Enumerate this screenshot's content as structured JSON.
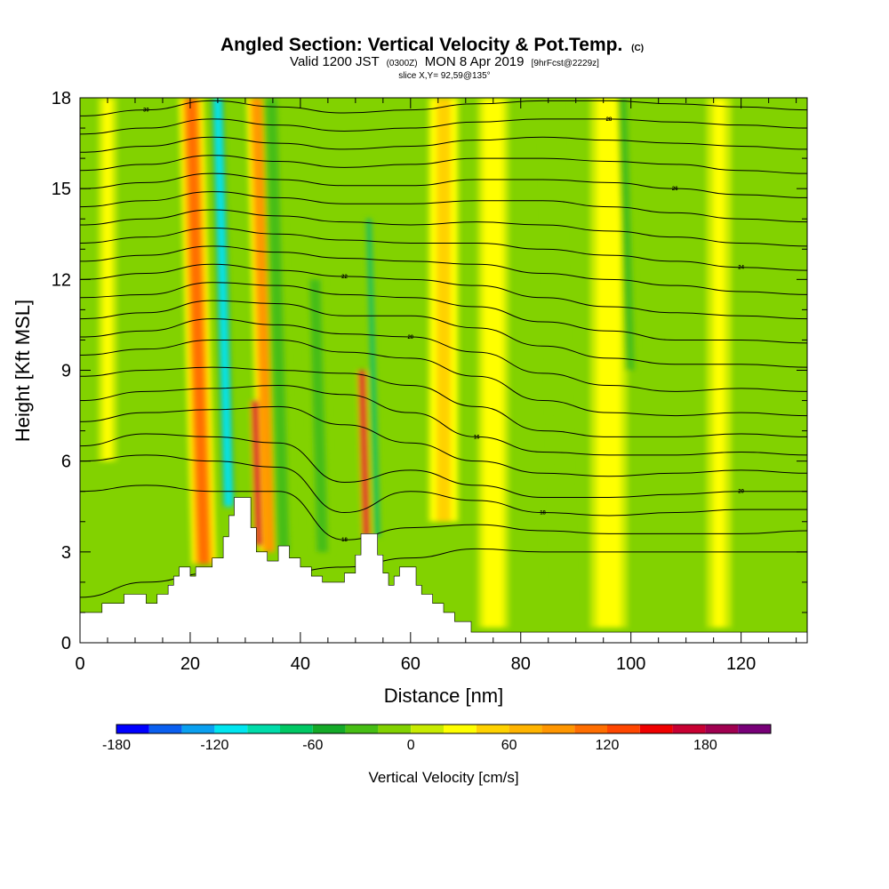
{
  "chart_data": {
    "type": "heatmap",
    "title": "Angled Section: Vertical Velocity & Pot.Temp.",
    "title_unit": "(C)",
    "subtitle_parts": [
      "Valid 1200 JST",
      "(0300Z)",
      "MON 8 Apr 2019",
      "[9hrFcst@2229z]"
    ],
    "slice_label": "slice X,Y= 92,59@135°",
    "xlabel": "Distance [nm]",
    "ylabel": "Height [Kft MSL]",
    "xlim": [
      0,
      132
    ],
    "ylim": [
      0,
      18
    ],
    "x_ticks": [
      0,
      20,
      40,
      60,
      80,
      100,
      120
    ],
    "y_ticks": [
      0,
      3,
      6,
      9,
      12,
      15,
      18
    ],
    "x_tick_labels": [
      "0",
      "20",
      "40",
      "60",
      "80",
      "100",
      "120"
    ],
    "y_tick_labels": [
      "0",
      "3",
      "6",
      "9",
      "12",
      "15",
      "18"
    ],
    "colorbar": {
      "label": "Vertical Velocity [cm/s]",
      "min": -180,
      "max": 220,
      "step": 20,
      "tick_values": [
        -180,
        -120,
        -60,
        0,
        60,
        120,
        180
      ],
      "tick_labels": [
        "-180",
        "-120",
        "-60",
        "0",
        "60",
        "120",
        "180"
      ],
      "colors": [
        "#0000ff",
        "#0a5ff0",
        "#0aa0f0",
        "#00e6f0",
        "#00dcaa",
        "#00c864",
        "#14aa28",
        "#46be14",
        "#82d200",
        "#c8eb00",
        "#ffff00",
        "#ffd200",
        "#ffb400",
        "#ff9600",
        "#ff6e00",
        "#ff4600",
        "#f00000",
        "#c80032",
        "#a00050",
        "#780078"
      ]
    },
    "background_level_color": "#82d200",
    "features": [
      {
        "type": "updraft",
        "x": 22.5,
        "y0": 2.6,
        "y1": 18,
        "width": 4.0,
        "value": 100
      },
      {
        "type": "updraft",
        "x": 34.5,
        "y0": 3.0,
        "y1": 18,
        "width": 3.6,
        "value": 80
      },
      {
        "type": "updraft",
        "x": 32.5,
        "y0": 3.2,
        "y1": 8.0,
        "width": 1.6,
        "value": 170
      },
      {
        "type": "updraft",
        "x": 52.0,
        "y0": 3.5,
        "y1": 9.0,
        "width": 1.5,
        "value": 170
      },
      {
        "type": "updraft",
        "x": 66.0,
        "y0": 4.0,
        "y1": 18,
        "width": 5.0,
        "value": 40
      },
      {
        "type": "updraft",
        "x": 75.0,
        "y0": 0.5,
        "y1": 18,
        "width": 5.0,
        "value": 30
      },
      {
        "type": "updraft",
        "x": 96.0,
        "y0": 0.5,
        "y1": 18,
        "width": 6.0,
        "value": 30
      },
      {
        "type": "updraft",
        "x": 116.0,
        "y0": 0.5,
        "y1": 18,
        "width": 4.0,
        "value": 20
      },
      {
        "type": "updraft",
        "x": 5.0,
        "y0": 6.0,
        "y1": 18,
        "width": 3.0,
        "value": 20
      },
      {
        "type": "downdraft",
        "x": 27.0,
        "y0": 4.5,
        "y1": 18,
        "width": 2.0,
        "value": -110
      },
      {
        "type": "downdraft",
        "x": 37.0,
        "y0": 3.0,
        "y1": 18,
        "width": 3.0,
        "value": -40
      },
      {
        "type": "downdraft",
        "x": 54.0,
        "y0": 3.5,
        "y1": 14.0,
        "width": 1.2,
        "value": -70
      },
      {
        "type": "downdraft",
        "x": 44.0,
        "y0": 3.0,
        "y1": 12.0,
        "width": 3.0,
        "value": -40
      },
      {
        "type": "downdraft",
        "x": 100.0,
        "y0": 9.0,
        "y1": 18,
        "width": 2.0,
        "value": -40
      },
      {
        "type": "downdraft",
        "x": 88.0,
        "y0": 0.5,
        "y1": 18,
        "width": 3.0,
        "value": -10
      }
    ],
    "terrain": [
      [
        0,
        1.0
      ],
      [
        4,
        1.0
      ],
      [
        4,
        1.3
      ],
      [
        8,
        1.3
      ],
      [
        8,
        1.6
      ],
      [
        12,
        1.6
      ],
      [
        12,
        1.3
      ],
      [
        14,
        1.3
      ],
      [
        14,
        1.6
      ],
      [
        16,
        1.6
      ],
      [
        16,
        1.9
      ],
      [
        17,
        1.9
      ],
      [
        17,
        2.2
      ],
      [
        18,
        2.2
      ],
      [
        18,
        2.5
      ],
      [
        20,
        2.5
      ],
      [
        20,
        2.2
      ],
      [
        21,
        2.2
      ],
      [
        21,
        2.5
      ],
      [
        24,
        2.5
      ],
      [
        24,
        2.8
      ],
      [
        26,
        2.8
      ],
      [
        26,
        3.5
      ],
      [
        27,
        3.5
      ],
      [
        27,
        4.2
      ],
      [
        28,
        4.2
      ],
      [
        28,
        4.8
      ],
      [
        31,
        4.8
      ],
      [
        31,
        3.8
      ],
      [
        32,
        3.8
      ],
      [
        32,
        3.0
      ],
      [
        34,
        3.0
      ],
      [
        34,
        2.7
      ],
      [
        36,
        2.7
      ],
      [
        36,
        3.2
      ],
      [
        38,
        3.2
      ],
      [
        38,
        2.8
      ],
      [
        40,
        2.8
      ],
      [
        40,
        2.5
      ],
      [
        42,
        2.5
      ],
      [
        42,
        2.2
      ],
      [
        44,
        2.2
      ],
      [
        44,
        2.0
      ],
      [
        48,
        2.0
      ],
      [
        48,
        2.3
      ],
      [
        50,
        2.3
      ],
      [
        50,
        2.9
      ],
      [
        51,
        2.9
      ],
      [
        51,
        3.6
      ],
      [
        54,
        3.6
      ],
      [
        54,
        2.9
      ],
      [
        55,
        2.9
      ],
      [
        55,
        2.3
      ],
      [
        56,
        2.3
      ],
      [
        56,
        1.9
      ],
      [
        57,
        1.9
      ],
      [
        57,
        2.2
      ],
      [
        58,
        2.2
      ],
      [
        58,
        2.5
      ],
      [
        61,
        2.5
      ],
      [
        61,
        1.9
      ],
      [
        62,
        1.9
      ],
      [
        62,
        1.6
      ],
      [
        64,
        1.6
      ],
      [
        64,
        1.3
      ],
      [
        66,
        1.3
      ],
      [
        66,
        1.0
      ],
      [
        68,
        1.0
      ],
      [
        68,
        0.7
      ],
      [
        71,
        0.7
      ],
      [
        71,
        0.35
      ],
      [
        132,
        0.35
      ]
    ],
    "isentropes": [
      {
        "y": [
          1.5,
          2.0,
          2.3,
          2.3,
          2.5,
          2.8,
          3.1,
          3.0,
          3.0,
          3.0,
          3.0,
          3.0
        ]
      },
      {
        "y": [
          5.0,
          5.2,
          5.0,
          5.0,
          3.4,
          3.8,
          3.9,
          3.7,
          3.6,
          3.6,
          3.6,
          3.7
        ],
        "label": "18"
      },
      {
        "y": [
          6.0,
          6.2,
          6.0,
          5.8,
          4.3,
          5.0,
          4.7,
          4.3,
          4.2,
          4.3,
          4.4,
          4.4
        ],
        "label": "18"
      },
      {
        "y": [
          6.5,
          6.9,
          6.8,
          6.6,
          5.3,
          5.7,
          5.2,
          4.8,
          4.8,
          4.9,
          5.0,
          5.0
        ],
        "label": "20"
      },
      {
        "y": [
          7.3,
          7.6,
          7.7,
          7.8,
          7.2,
          6.6,
          6.0,
          5.6,
          5.5,
          5.6,
          5.7,
          5.6
        ]
      },
      {
        "y": [
          8.0,
          8.3,
          8.4,
          8.5,
          8.2,
          7.6,
          6.8,
          6.3,
          6.2,
          6.2,
          6.3,
          6.2
        ],
        "label": "16"
      },
      {
        "y": [
          8.8,
          9.0,
          9.1,
          9.0,
          8.9,
          8.5,
          7.8,
          7.0,
          6.8,
          6.8,
          6.9,
          6.8
        ]
      },
      {
        "y": [
          9.5,
          9.7,
          10.0,
          10.0,
          9.6,
          9.4,
          8.8,
          8.0,
          7.6,
          7.5,
          7.6,
          7.5
        ]
      },
      {
        "y": [
          10.1,
          10.3,
          10.7,
          10.5,
          10.2,
          10.1,
          9.6,
          8.9,
          8.5,
          8.3,
          8.4,
          8.3
        ],
        "label": "20"
      },
      {
        "y": [
          10.7,
          10.9,
          11.3,
          11.2,
          10.8,
          10.8,
          10.4,
          9.8,
          9.4,
          9.2,
          9.2,
          9.1
        ]
      },
      {
        "y": [
          11.4,
          11.5,
          11.9,
          11.8,
          11.5,
          11.4,
          11.1,
          10.6,
          10.3,
          10.0,
          10.0,
          9.9
        ]
      },
      {
        "y": [
          12.0,
          12.2,
          12.5,
          12.3,
          12.1,
          12.0,
          11.8,
          11.4,
          11.1,
          10.9,
          10.8,
          10.7
        ],
        "label": "22"
      },
      {
        "y": [
          12.6,
          12.8,
          13.1,
          12.9,
          12.7,
          12.6,
          12.5,
          12.2,
          12.0,
          11.8,
          11.6,
          11.5
        ]
      },
      {
        "y": [
          13.2,
          13.4,
          13.7,
          13.5,
          13.3,
          13.2,
          13.2,
          13.0,
          12.8,
          12.6,
          12.4,
          12.3
        ],
        "label": "24"
      },
      {
        "y": [
          13.8,
          14.0,
          14.3,
          14.1,
          13.9,
          13.8,
          13.9,
          13.8,
          13.6,
          13.4,
          13.2,
          13.1
        ]
      },
      {
        "y": [
          14.4,
          14.6,
          14.9,
          14.7,
          14.5,
          14.5,
          14.6,
          14.6,
          14.4,
          14.2,
          14.0,
          13.9
        ]
      },
      {
        "y": [
          15.0,
          15.2,
          15.5,
          15.3,
          15.1,
          15.1,
          15.3,
          15.3,
          15.2,
          15.0,
          14.8,
          14.7
        ],
        "label": "26"
      },
      {
        "y": [
          15.6,
          15.8,
          16.1,
          15.9,
          15.7,
          15.8,
          16.0,
          16.0,
          15.9,
          15.8,
          15.6,
          15.5
        ]
      },
      {
        "y": [
          16.2,
          16.4,
          16.7,
          16.5,
          16.3,
          16.4,
          16.6,
          16.7,
          16.6,
          16.5,
          16.4,
          16.3
        ]
      },
      {
        "y": [
          16.8,
          17.0,
          17.3,
          17.1,
          16.9,
          17.0,
          17.2,
          17.3,
          17.3,
          17.2,
          17.1,
          17.0
        ],
        "label": "28"
      },
      {
        "y": [
          17.4,
          17.6,
          17.9,
          17.7,
          17.5,
          17.6,
          17.8,
          17.9,
          17.9,
          17.8,
          17.7,
          17.6
        ],
        "label": "30"
      }
    ],
    "isentrope_x": [
      0,
      12,
      24,
      36,
      48,
      60,
      72,
      84,
      96,
      108,
      120,
      132
    ],
    "grid": false,
    "legend": "bottom"
  }
}
